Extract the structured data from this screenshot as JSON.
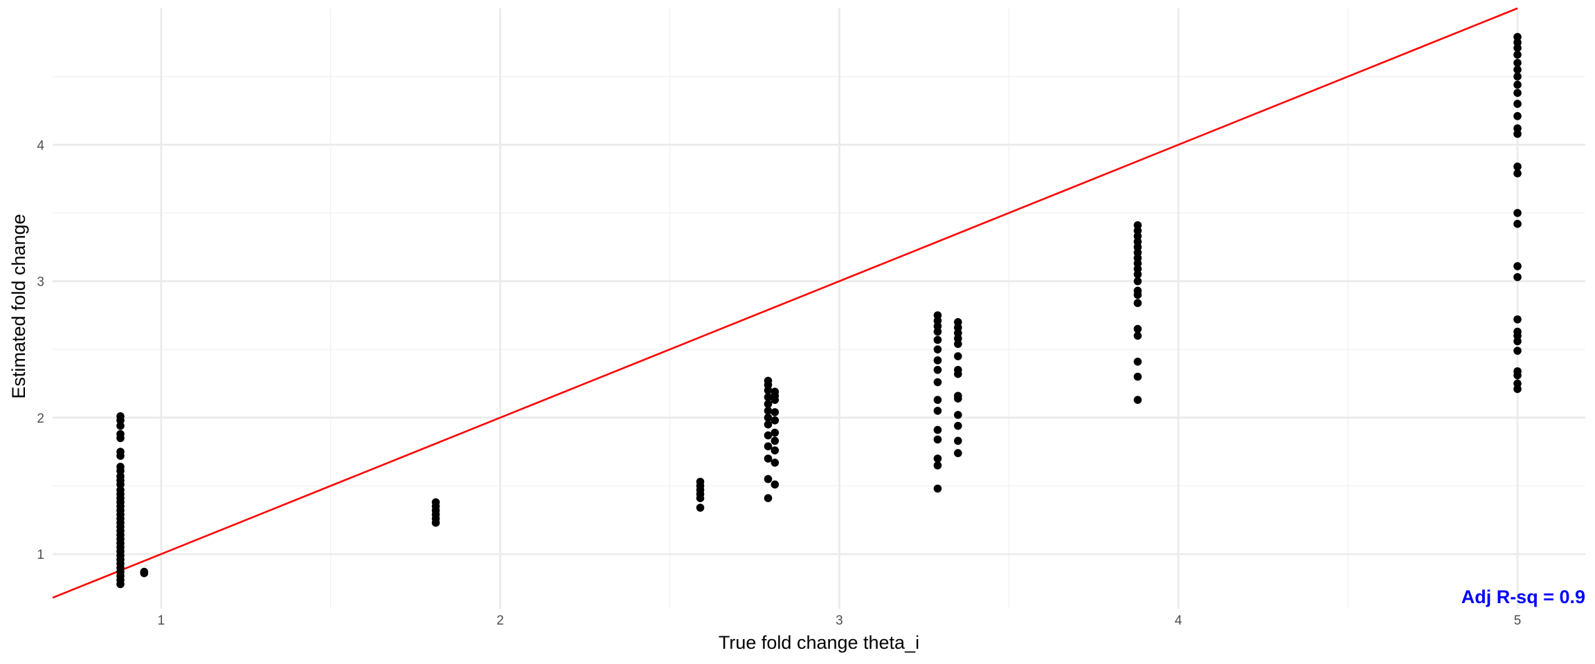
{
  "chart_data": {
    "type": "scatter",
    "title": "",
    "xlabel": "True fold change theta_i",
    "ylabel": "Estimated fold change",
    "xlim": [
      0.68,
      5.2
    ],
    "ylim": [
      0.6,
      5.0
    ],
    "x_ticks": [
      1,
      2,
      3,
      4,
      5
    ],
    "y_ticks": [
      1,
      2,
      3,
      4
    ],
    "grid": true,
    "legend": "none",
    "reference_line": {
      "slope": 1,
      "intercept": 0,
      "color": "#ff0000"
    },
    "annotation": {
      "text": "Adj R-sq = 0.9",
      "color": "#0000ff",
      "position": "bottom-right"
    },
    "point_color": "#000000",
    "points": [
      {
        "x": 0.88,
        "y": 2.01
      },
      {
        "x": 0.88,
        "y": 1.98
      },
      {
        "x": 0.88,
        "y": 1.94
      },
      {
        "x": 0.88,
        "y": 1.88
      },
      {
        "x": 0.88,
        "y": 1.85
      },
      {
        "x": 0.88,
        "y": 1.75
      },
      {
        "x": 0.88,
        "y": 1.72
      },
      {
        "x": 0.88,
        "y": 1.64
      },
      {
        "x": 0.88,
        "y": 1.61
      },
      {
        "x": 0.88,
        "y": 1.57
      },
      {
        "x": 0.88,
        "y": 1.54
      },
      {
        "x": 0.88,
        "y": 1.51
      },
      {
        "x": 0.88,
        "y": 1.47
      },
      {
        "x": 0.88,
        "y": 1.44
      },
      {
        "x": 0.88,
        "y": 1.41
      },
      {
        "x": 0.88,
        "y": 1.38
      },
      {
        "x": 0.88,
        "y": 1.35
      },
      {
        "x": 0.88,
        "y": 1.32
      },
      {
        "x": 0.88,
        "y": 1.29
      },
      {
        "x": 0.88,
        "y": 1.26
      },
      {
        "x": 0.88,
        "y": 1.23
      },
      {
        "x": 0.88,
        "y": 1.2
      },
      {
        "x": 0.88,
        "y": 1.17
      },
      {
        "x": 0.88,
        "y": 1.14
      },
      {
        "x": 0.88,
        "y": 1.11
      },
      {
        "x": 0.88,
        "y": 1.08
      },
      {
        "x": 0.88,
        "y": 1.05
      },
      {
        "x": 0.88,
        "y": 1.02
      },
      {
        "x": 0.88,
        "y": 0.99
      },
      {
        "x": 0.88,
        "y": 0.96
      },
      {
        "x": 0.88,
        "y": 0.93
      },
      {
        "x": 0.88,
        "y": 0.9
      },
      {
        "x": 0.88,
        "y": 0.87
      },
      {
        "x": 0.88,
        "y": 0.84
      },
      {
        "x": 0.88,
        "y": 0.81
      },
      {
        "x": 0.88,
        "y": 0.78
      },
      {
        "x": 0.95,
        "y": 0.87
      },
      {
        "x": 0.95,
        "y": 0.86
      },
      {
        "x": 1.81,
        "y": 1.38
      },
      {
        "x": 1.81,
        "y": 1.35
      },
      {
        "x": 1.81,
        "y": 1.32
      },
      {
        "x": 1.81,
        "y": 1.29
      },
      {
        "x": 1.81,
        "y": 1.26
      },
      {
        "x": 1.81,
        "y": 1.23
      },
      {
        "x": 2.59,
        "y": 1.53
      },
      {
        "x": 2.59,
        "y": 1.5
      },
      {
        "x": 2.59,
        "y": 1.47
      },
      {
        "x": 2.59,
        "y": 1.44
      },
      {
        "x": 2.59,
        "y": 1.41
      },
      {
        "x": 2.59,
        "y": 1.34
      },
      {
        "x": 2.79,
        "y": 2.27
      },
      {
        "x": 2.79,
        "y": 2.24
      },
      {
        "x": 2.79,
        "y": 2.2
      },
      {
        "x": 2.79,
        "y": 2.15
      },
      {
        "x": 2.79,
        "y": 2.1
      },
      {
        "x": 2.79,
        "y": 2.05
      },
      {
        "x": 2.79,
        "y": 2.0
      },
      {
        "x": 2.79,
        "y": 1.95
      },
      {
        "x": 2.79,
        "y": 1.87
      },
      {
        "x": 2.79,
        "y": 1.79
      },
      {
        "x": 2.79,
        "y": 1.7
      },
      {
        "x": 2.79,
        "y": 1.55
      },
      {
        "x": 2.79,
        "y": 1.41
      },
      {
        "x": 2.81,
        "y": 2.19
      },
      {
        "x": 2.81,
        "y": 2.16
      },
      {
        "x": 2.81,
        "y": 2.13
      },
      {
        "x": 2.81,
        "y": 2.04
      },
      {
        "x": 2.81,
        "y": 1.98
      },
      {
        "x": 2.81,
        "y": 1.89
      },
      {
        "x": 2.81,
        "y": 1.83
      },
      {
        "x": 2.81,
        "y": 1.76
      },
      {
        "x": 2.81,
        "y": 1.67
      },
      {
        "x": 2.81,
        "y": 1.51
      },
      {
        "x": 3.29,
        "y": 2.75
      },
      {
        "x": 3.29,
        "y": 2.71
      },
      {
        "x": 3.29,
        "y": 2.67
      },
      {
        "x": 3.29,
        "y": 2.63
      },
      {
        "x": 3.29,
        "y": 2.57
      },
      {
        "x": 3.29,
        "y": 2.5
      },
      {
        "x": 3.29,
        "y": 2.42
      },
      {
        "x": 3.29,
        "y": 2.35
      },
      {
        "x": 3.29,
        "y": 2.26
      },
      {
        "x": 3.29,
        "y": 2.13
      },
      {
        "x": 3.29,
        "y": 2.05
      },
      {
        "x": 3.29,
        "y": 1.91
      },
      {
        "x": 3.29,
        "y": 1.84
      },
      {
        "x": 3.29,
        "y": 1.7
      },
      {
        "x": 3.29,
        "y": 1.65
      },
      {
        "x": 3.29,
        "y": 1.48
      },
      {
        "x": 3.35,
        "y": 2.7
      },
      {
        "x": 3.35,
        "y": 2.66
      },
      {
        "x": 3.35,
        "y": 2.62
      },
      {
        "x": 3.35,
        "y": 2.58
      },
      {
        "x": 3.35,
        "y": 2.54
      },
      {
        "x": 3.35,
        "y": 2.45
      },
      {
        "x": 3.35,
        "y": 2.35
      },
      {
        "x": 3.35,
        "y": 2.32
      },
      {
        "x": 3.35,
        "y": 2.16
      },
      {
        "x": 3.35,
        "y": 2.14
      },
      {
        "x": 3.35,
        "y": 2.02
      },
      {
        "x": 3.35,
        "y": 1.94
      },
      {
        "x": 3.35,
        "y": 1.83
      },
      {
        "x": 3.35,
        "y": 1.74
      },
      {
        "x": 3.88,
        "y": 3.41
      },
      {
        "x": 3.88,
        "y": 3.37
      },
      {
        "x": 3.88,
        "y": 3.33
      },
      {
        "x": 3.88,
        "y": 3.29
      },
      {
        "x": 3.88,
        "y": 3.25
      },
      {
        "x": 3.88,
        "y": 3.21
      },
      {
        "x": 3.88,
        "y": 3.17
      },
      {
        "x": 3.88,
        "y": 3.13
      },
      {
        "x": 3.88,
        "y": 3.09
      },
      {
        "x": 3.88,
        "y": 3.05
      },
      {
        "x": 3.88,
        "y": 3.0
      },
      {
        "x": 3.88,
        "y": 2.93
      },
      {
        "x": 3.88,
        "y": 2.9
      },
      {
        "x": 3.88,
        "y": 2.84
      },
      {
        "x": 3.88,
        "y": 2.65
      },
      {
        "x": 3.88,
        "y": 2.6
      },
      {
        "x": 3.88,
        "y": 2.41
      },
      {
        "x": 3.88,
        "y": 2.3
      },
      {
        "x": 3.88,
        "y": 2.13
      },
      {
        "x": 5.0,
        "y": 4.79
      },
      {
        "x": 5.0,
        "y": 4.75
      },
      {
        "x": 5.0,
        "y": 4.71
      },
      {
        "x": 5.0,
        "y": 4.66
      },
      {
        "x": 5.0,
        "y": 4.6
      },
      {
        "x": 5.0,
        "y": 4.55
      },
      {
        "x": 5.0,
        "y": 4.5
      },
      {
        "x": 5.0,
        "y": 4.44
      },
      {
        "x": 5.0,
        "y": 4.38
      },
      {
        "x": 5.0,
        "y": 4.3
      },
      {
        "x": 5.0,
        "y": 4.21
      },
      {
        "x": 5.0,
        "y": 4.12
      },
      {
        "x": 5.0,
        "y": 4.08
      },
      {
        "x": 5.0,
        "y": 3.84
      },
      {
        "x": 5.0,
        "y": 3.79
      },
      {
        "x": 5.0,
        "y": 3.5
      },
      {
        "x": 5.0,
        "y": 3.42
      },
      {
        "x": 5.0,
        "y": 3.11
      },
      {
        "x": 5.0,
        "y": 3.03
      },
      {
        "x": 5.0,
        "y": 2.72
      },
      {
        "x": 5.0,
        "y": 2.63
      },
      {
        "x": 5.0,
        "y": 2.6
      },
      {
        "x": 5.0,
        "y": 2.56
      },
      {
        "x": 5.0,
        "y": 2.49
      },
      {
        "x": 5.0,
        "y": 2.34
      },
      {
        "x": 5.0,
        "y": 2.31
      },
      {
        "x": 5.0,
        "y": 2.25
      },
      {
        "x": 5.0,
        "y": 2.21
      }
    ]
  }
}
